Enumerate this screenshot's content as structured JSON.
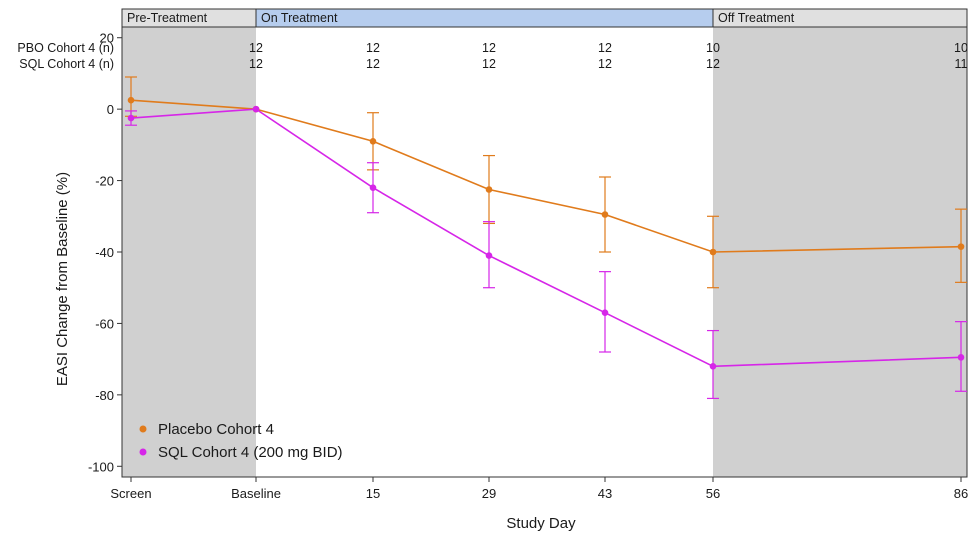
{
  "chart_data": {
    "type": "line",
    "xlabel": "Study Day",
    "ylabel": "EASI Change from Baseline (%)",
    "ylim": [
      -103,
      23
    ],
    "yticks": [
      20,
      0,
      -20,
      -40,
      -60,
      -80,
      -100
    ],
    "x_ticks": [
      "Screen",
      "Baseline",
      "15",
      "29",
      "43",
      "56",
      "86"
    ],
    "grid": false,
    "legend_position": "bottom-left",
    "phases": [
      {
        "label": "Pre-Treatment",
        "from": "Screen",
        "to": "Baseline",
        "shaded": true,
        "header_color": "#e0e0e0"
      },
      {
        "label": "On Treatment",
        "from": "Baseline",
        "to": "56",
        "shaded": false,
        "header_color": "#b6cdee"
      },
      {
        "label": "Off Treatment",
        "from": "56",
        "to": "86",
        "shaded": true,
        "header_color": "#e0e0e0"
      }
    ],
    "counts": [
      {
        "label": "PBO Cohort 4 (n)",
        "values": [
          "",
          "12",
          "12",
          "12",
          "12",
          "10",
          "10"
        ]
      },
      {
        "label": "SQL Cohort 4 (n)",
        "values": [
          "",
          "12",
          "12",
          "12",
          "12",
          "12",
          "11"
        ]
      }
    ],
    "series": [
      {
        "name": "Placebo Cohort 4",
        "color": "#e07b1c",
        "values": [
          2.5,
          0,
          -9,
          -22.5,
          -29.5,
          -40,
          -38.5
        ],
        "err_low": [
          -2,
          null,
          -17,
          -32,
          -40,
          -50,
          -48.5
        ],
        "err_high": [
          9,
          null,
          -1,
          -13,
          -19,
          -30,
          -28
        ]
      },
      {
        "name": "SQL Cohort 4 (200 mg BID)",
        "color": "#d626e8",
        "values": [
          -2.5,
          0,
          -22,
          -41,
          -57,
          -72,
          -69.5
        ],
        "err_low": [
          -4.5,
          null,
          -29,
          -50,
          -68,
          -81,
          -79
        ],
        "err_high": [
          -0.5,
          null,
          -15,
          -31.5,
          -45.5,
          -62,
          -59.5
        ]
      }
    ]
  }
}
